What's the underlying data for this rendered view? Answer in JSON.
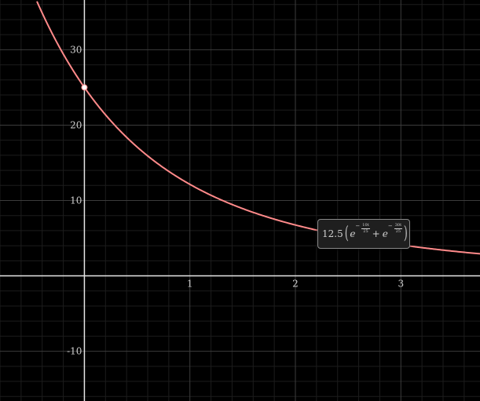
{
  "chart_data": {
    "type": "line",
    "title": "",
    "xlabel": "",
    "ylabel": "",
    "xlim": [
      -0.8,
      3.75
    ],
    "ylim": [
      -16.6,
      36.6
    ],
    "grid": true,
    "x_ticks": [
      {
        "value": 1,
        "label": "1"
      },
      {
        "value": 2,
        "label": "2"
      },
      {
        "value": 3,
        "label": "3"
      }
    ],
    "y_ticks": [
      {
        "value": -10,
        "label": "-10"
      },
      {
        "value": 10,
        "label": "10"
      },
      {
        "value": 20,
        "label": "20"
      },
      {
        "value": 30,
        "label": "30"
      }
    ],
    "series": [
      {
        "color": "#ff8a8a",
        "function": "12.5*(exp(-10t/25)+exp(-30t/25))",
        "x": [
          -0.45,
          -0.25,
          0,
          0.25,
          0.5,
          0.75,
          1,
          1.5,
          2,
          2.5,
          3,
          3.5,
          3.75
        ],
        "y": [
          36.6,
          30.5,
          25.0,
          20.6,
          17.3,
          14.8,
          12.2,
          9.1,
          7.0,
          5.5,
          4.3,
          3.5,
          3.2
        ]
      }
    ],
    "highlight_point": {
      "x": 0,
      "y": 25
    },
    "annotations": [
      {
        "coefficient": "12.5",
        "base": "e",
        "term1_numerator": "10t",
        "term1_denominator": "25",
        "term2_numerator": "30t",
        "term2_denominator": "25",
        "operator": "+",
        "minus": "−"
      }
    ]
  }
}
